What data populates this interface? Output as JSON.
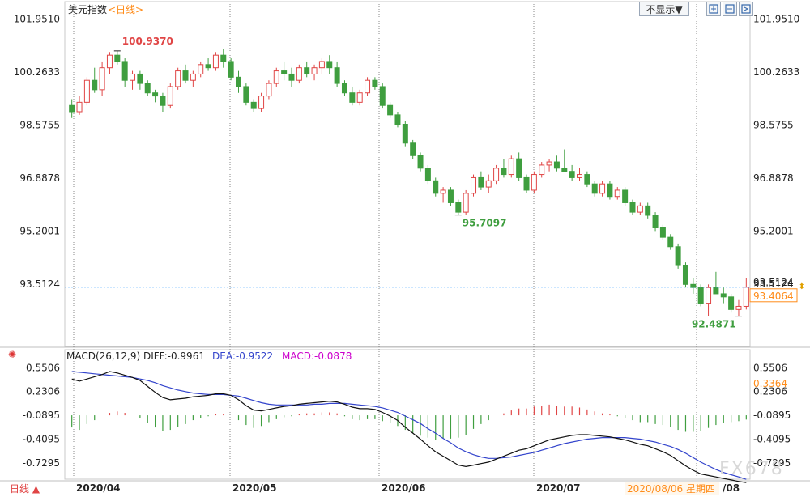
{
  "header": {
    "instrument": "美元指数",
    "period": "<日线>",
    "display_toggle": "不显示▼"
  },
  "toolbar": {
    "icons": [
      "zoom-in-icon",
      "zoom-out-icon",
      "expand-icon",
      "collapse-icon"
    ]
  },
  "footer": {
    "period_button": "日线 ▲",
    "date_label": "2020/08/06 星期四",
    "end_label": "/08"
  },
  "watermark": "FX678",
  "colors": {
    "up": "#e04545",
    "down": "#3f9e3f",
    "diff_line": "#111111",
    "dea_line": "#3344cc",
    "macd_pos": "#e04545",
    "macd_neg": "#3f9e3f",
    "current_price": "#ff8c1a",
    "crosshair": "#3399ff"
  },
  "chart_data": [
    {
      "type": "candlestick",
      "ylim": [
        91.6,
        102.3
      ],
      "y_ticks": [
        "101.9510",
        "100.2633",
        "98.5755",
        "96.8878",
        "95.2001",
        "93.5124"
      ],
      "x_ticks": [
        "2020/04",
        "2020/05",
        "2020/06",
        "2020/07"
      ],
      "annotations": {
        "high": {
          "label": "100.9370",
          "value": 100.937
        },
        "low_jun": {
          "label": "95.7097",
          "value": 95.7097
        },
        "low_aug": {
          "label": "92.4871",
          "value": 92.4871
        },
        "current_left": "93.5124",
        "current_right": "93.4064"
      },
      "candles": [
        [
          99.2,
          99.4,
          98.8,
          99.0
        ],
        [
          99.0,
          99.5,
          98.9,
          99.3
        ],
        [
          99.3,
          100.1,
          99.2,
          100.0
        ],
        [
          100.0,
          100.4,
          99.6,
          99.7
        ],
        [
          99.7,
          100.6,
          99.5,
          100.4
        ],
        [
          100.4,
          100.9,
          100.2,
          100.8
        ],
        [
          100.8,
          100.94,
          100.5,
          100.6
        ],
        [
          100.6,
          100.7,
          99.8,
          100.0
        ],
        [
          100.0,
          100.3,
          99.7,
          100.2
        ],
        [
          100.2,
          100.3,
          99.7,
          99.9
        ],
        [
          99.9,
          100.0,
          99.5,
          99.6
        ],
        [
          99.6,
          99.7,
          99.3,
          99.5
        ],
        [
          99.5,
          99.6,
          99.0,
          99.2
        ],
        [
          99.2,
          99.9,
          99.1,
          99.8
        ],
        [
          99.8,
          100.4,
          99.7,
          100.3
        ],
        [
          100.3,
          100.5,
          99.9,
          100.0
        ],
        [
          100.0,
          100.3,
          99.8,
          100.2
        ],
        [
          100.2,
          100.6,
          100.1,
          100.5
        ],
        [
          100.5,
          100.7,
          100.3,
          100.4
        ],
        [
          100.4,
          100.9,
          100.3,
          100.8
        ],
        [
          100.8,
          101.0,
          100.4,
          100.6
        ],
        [
          100.6,
          100.7,
          100.0,
          100.1
        ],
        [
          100.1,
          100.3,
          99.6,
          99.8
        ],
        [
          99.8,
          99.9,
          99.2,
          99.3
        ],
        [
          99.3,
          99.4,
          99.0,
          99.1
        ],
        [
          99.1,
          99.6,
          99.0,
          99.5
        ],
        [
          99.5,
          100.0,
          99.4,
          99.9
        ],
        [
          99.9,
          100.4,
          99.8,
          100.3
        ],
        [
          100.3,
          100.6,
          100.0,
          100.2
        ],
        [
          100.2,
          100.4,
          99.8,
          100.0
        ],
        [
          100.0,
          100.5,
          99.9,
          100.4
        ],
        [
          100.4,
          100.6,
          100.1,
          100.2
        ],
        [
          100.2,
          100.5,
          100.0,
          100.4
        ],
        [
          100.4,
          100.7,
          100.2,
          100.6
        ],
        [
          100.6,
          100.8,
          100.2,
          100.4
        ],
        [
          100.4,
          100.6,
          99.8,
          99.9
        ],
        [
          99.9,
          100.0,
          99.5,
          99.6
        ],
        [
          99.6,
          99.8,
          99.2,
          99.3
        ],
        [
          99.3,
          99.7,
          99.2,
          99.6
        ],
        [
          99.6,
          100.1,
          99.5,
          100.0
        ],
        [
          100.0,
          100.1,
          99.7,
          99.8
        ],
        [
          99.8,
          99.9,
          99.1,
          99.2
        ],
        [
          99.2,
          99.3,
          98.8,
          98.9
        ],
        [
          98.9,
          99.0,
          98.5,
          98.6
        ],
        [
          98.6,
          98.7,
          97.9,
          98.0
        ],
        [
          98.0,
          98.1,
          97.5,
          97.6
        ],
        [
          97.6,
          97.7,
          97.1,
          97.2
        ],
        [
          97.2,
          97.3,
          96.7,
          96.8
        ],
        [
          96.8,
          96.9,
          96.3,
          96.4
        ],
        [
          96.4,
          96.6,
          96.1,
          96.5
        ],
        [
          96.5,
          96.6,
          96.0,
          96.1
        ],
        [
          96.1,
          96.2,
          95.71,
          95.8
        ],
        [
          95.8,
          96.5,
          95.7,
          96.4
        ],
        [
          96.4,
          97.0,
          96.3,
          96.9
        ],
        [
          96.9,
          97.1,
          96.5,
          96.6
        ],
        [
          96.6,
          97.0,
          96.4,
          96.8
        ],
        [
          96.8,
          97.3,
          96.7,
          97.2
        ],
        [
          97.2,
          97.5,
          96.9,
          97.0
        ],
        [
          97.0,
          97.6,
          96.9,
          97.5
        ],
        [
          97.5,
          97.7,
          96.8,
          96.9
        ],
        [
          96.9,
          97.0,
          96.4,
          96.5
        ],
        [
          96.5,
          97.1,
          96.4,
          97.0
        ],
        [
          97.0,
          97.4,
          96.9,
          97.3
        ],
        [
          97.3,
          97.5,
          97.1,
          97.4
        ],
        [
          97.4,
          97.6,
          97.1,
          97.2
        ],
        [
          97.2,
          97.8,
          97.1,
          97.1
        ],
        [
          97.1,
          97.3,
          96.8,
          96.9
        ],
        [
          96.9,
          97.2,
          96.8,
          97.0
        ],
        [
          97.0,
          97.1,
          96.6,
          96.7
        ],
        [
          96.7,
          96.8,
          96.3,
          96.4
        ],
        [
          96.4,
          96.8,
          96.3,
          96.7
        ],
        [
          96.7,
          96.8,
          96.2,
          96.3
        ],
        [
          96.3,
          96.6,
          96.2,
          96.5
        ],
        [
          96.5,
          96.6,
          96.0,
          96.1
        ],
        [
          96.1,
          96.2,
          95.7,
          95.8
        ],
        [
          95.8,
          96.1,
          95.7,
          96.0
        ],
        [
          96.0,
          96.1,
          95.6,
          95.7
        ],
        [
          95.7,
          95.8,
          95.2,
          95.3
        ],
        [
          95.3,
          95.4,
          94.9,
          95.0
        ],
        [
          95.0,
          95.1,
          94.6,
          94.7
        ],
        [
          94.7,
          94.8,
          94.0,
          94.1
        ],
        [
          94.1,
          94.2,
          93.4,
          93.5
        ],
        [
          93.5,
          93.7,
          93.2,
          93.4
        ],
        [
          93.4,
          93.5,
          92.8,
          92.9
        ],
        [
          92.9,
          93.5,
          92.5,
          93.4
        ],
        [
          93.4,
          93.9,
          93.2,
          93.2
        ],
        [
          93.2,
          93.4,
          92.9,
          93.1
        ],
        [
          93.1,
          93.2,
          92.6,
          92.7
        ],
        [
          92.7,
          93.0,
          92.49,
          92.8
        ],
        [
          92.8,
          93.7,
          92.7,
          93.41
        ]
      ],
      "candle_colors_note": ""
    },
    {
      "type": "macd",
      "title": "MACD(26,12,9)",
      "legend": {
        "diff": "DIFF:-0.9961",
        "dea": "DEA:-0.9522",
        "macd": "MACD:-0.0878"
      },
      "ylim": [
        -0.95,
        0.62
      ],
      "y_ticks": [
        "0.5506",
        "0.2306",
        "-0.0895",
        "-0.4095",
        "-0.7295"
      ],
      "current_right": "0.3364",
      "diff": [
        0.4,
        0.37,
        0.4,
        0.43,
        0.46,
        0.5,
        0.48,
        0.45,
        0.42,
        0.38,
        0.3,
        0.22,
        0.15,
        0.12,
        0.13,
        0.14,
        0.16,
        0.17,
        0.18,
        0.2,
        0.2,
        0.18,
        0.12,
        0.04,
        -0.02,
        -0.03,
        -0.01,
        0.01,
        0.03,
        0.04,
        0.06,
        0.07,
        0.08,
        0.09,
        0.1,
        0.09,
        0.06,
        0.02,
        0.0,
        0.0,
        -0.01,
        -0.05,
        -0.1,
        -0.16,
        -0.25,
        -0.33,
        -0.41,
        -0.5,
        -0.58,
        -0.64,
        -0.7,
        -0.76,
        -0.78,
        -0.76,
        -0.74,
        -0.72,
        -0.68,
        -0.64,
        -0.6,
        -0.56,
        -0.54,
        -0.5,
        -0.46,
        -0.42,
        -0.4,
        -0.38,
        -0.36,
        -0.35,
        -0.35,
        -0.36,
        -0.37,
        -0.38,
        -0.4,
        -0.42,
        -0.45,
        -0.48,
        -0.5,
        -0.54,
        -0.58,
        -0.63,
        -0.7,
        -0.77,
        -0.83,
        -0.88,
        -0.9,
        -0.92,
        -0.94,
        -0.96,
        -0.98,
        -0.9961
      ],
      "dea": [
        0.5,
        0.49,
        0.48,
        0.47,
        0.46,
        0.45,
        0.44,
        0.43,
        0.42,
        0.4,
        0.38,
        0.35,
        0.31,
        0.28,
        0.25,
        0.23,
        0.21,
        0.2,
        0.19,
        0.19,
        0.19,
        0.18,
        0.17,
        0.14,
        0.11,
        0.08,
        0.06,
        0.05,
        0.05,
        0.05,
        0.05,
        0.05,
        0.06,
        0.06,
        0.07,
        0.07,
        0.07,
        0.06,
        0.05,
        0.04,
        0.03,
        0.01,
        -0.02,
        -0.05,
        -0.1,
        -0.15,
        -0.2,
        -0.27,
        -0.33,
        -0.4,
        -0.46,
        -0.53,
        -0.58,
        -0.62,
        -0.65,
        -0.67,
        -0.67,
        -0.66,
        -0.65,
        -0.63,
        -0.61,
        -0.59,
        -0.56,
        -0.53,
        -0.5,
        -0.47,
        -0.45,
        -0.43,
        -0.41,
        -0.4,
        -0.39,
        -0.39,
        -0.39,
        -0.39,
        -0.4,
        -0.41,
        -0.43,
        -0.45,
        -0.48,
        -0.51,
        -0.55,
        -0.6,
        -0.66,
        -0.72,
        -0.77,
        -0.82,
        -0.86,
        -0.89,
        -0.92,
        -0.9522
      ],
      "macd": [
        -0.25,
        -0.3,
        -0.18,
        -0.1,
        0.0,
        0.05,
        0.08,
        0.05,
        0.0,
        -0.05,
        -0.15,
        -0.25,
        -0.32,
        -0.3,
        -0.24,
        -0.18,
        -0.1,
        -0.06,
        -0.02,
        0.02,
        0.02,
        0.0,
        -0.1,
        -0.2,
        -0.26,
        -0.22,
        -0.14,
        -0.08,
        -0.04,
        -0.02,
        0.02,
        0.04,
        0.04,
        0.06,
        0.06,
        0.04,
        -0.02,
        -0.08,
        -0.1,
        -0.08,
        -0.08,
        -0.12,
        -0.16,
        -0.22,
        -0.3,
        -0.36,
        -0.42,
        -0.46,
        -0.5,
        -0.48,
        -0.48,
        -0.46,
        -0.4,
        -0.28,
        -0.18,
        -0.1,
        0.0,
        0.04,
        0.1,
        0.14,
        0.14,
        0.18,
        0.2,
        0.22,
        0.2,
        0.18,
        0.18,
        0.16,
        0.12,
        0.08,
        0.04,
        0.02,
        -0.02,
        -0.06,
        -0.1,
        -0.14,
        -0.14,
        -0.18,
        -0.2,
        -0.24,
        -0.3,
        -0.34,
        -0.34,
        -0.32,
        -0.26,
        -0.2,
        -0.16,
        -0.14,
        -0.12,
        -0.0878
      ]
    }
  ]
}
